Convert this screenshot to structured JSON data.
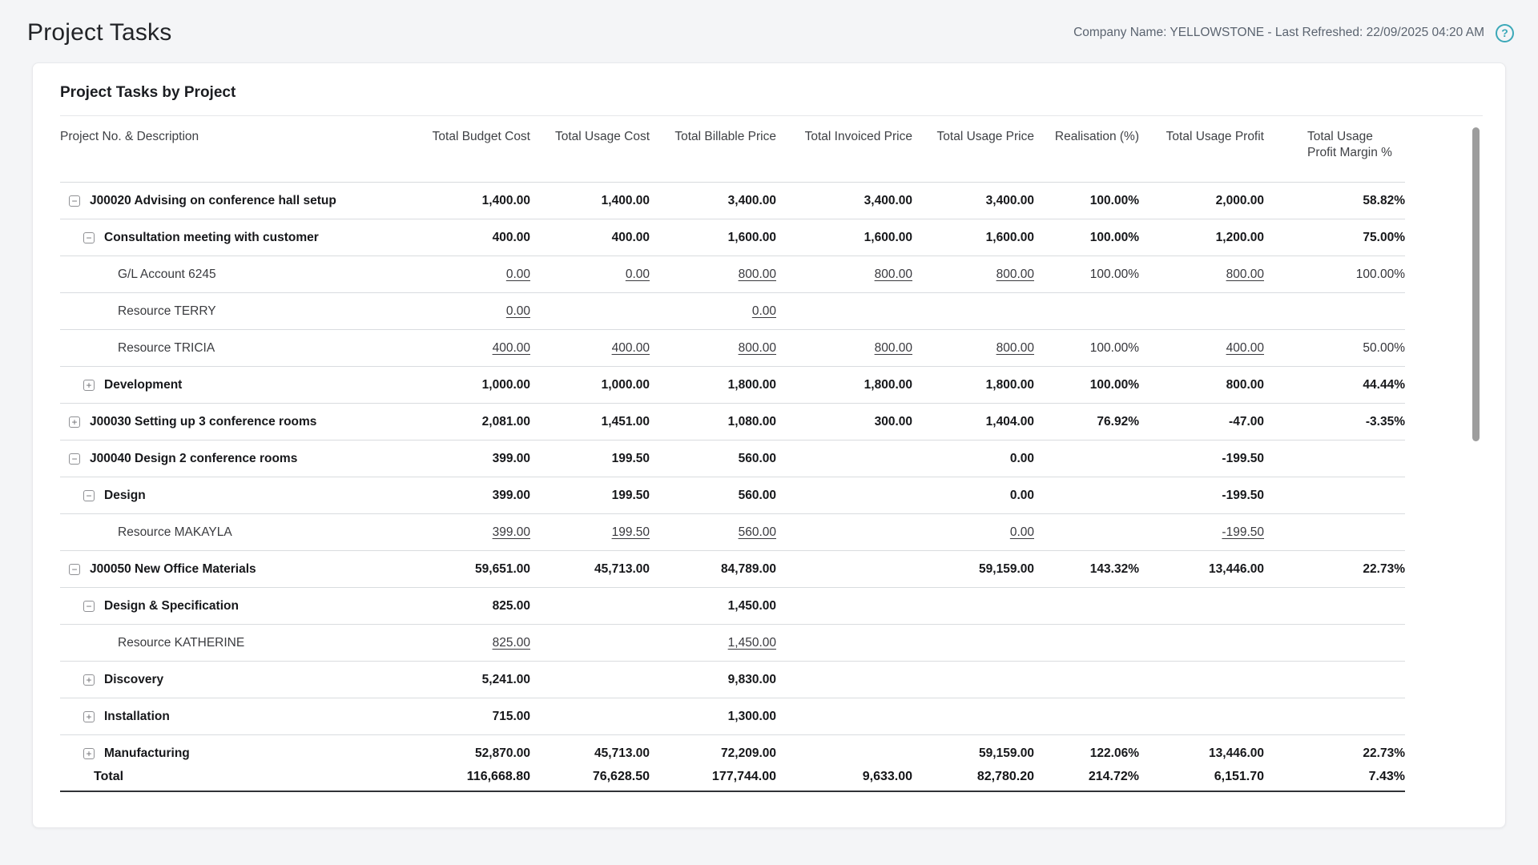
{
  "page": {
    "title": "Project Tasks",
    "meta": "Company Name: YELLOWSTONE - Last Refreshed: 22/09/2025 04:20 AM",
    "help_icon": "question-mark-icon",
    "help_glyph": "?"
  },
  "colors": {
    "accent_teal": "#3BA8B8",
    "page_background": "#f4f5f7",
    "card_background": "#ffffff",
    "divider": "#d9dcdf",
    "total_border": "#313236"
  },
  "report": {
    "title": "Project Tasks by Project",
    "columns": [
      "Project No. & Description",
      "Total Budget Cost",
      "Total Usage Cost",
      "Total Billable Price",
      "Total Invoiced Price",
      "Total Usage Price",
      "Realisation (%)",
      "Total Usage Profit",
      "Total Usage Profit Margin %"
    ],
    "rows": [
      {
        "level": 0,
        "toggle": "collapse",
        "bold": true,
        "label": "J00020 Advising on conference hall setup",
        "cells": [
          "1,400.00",
          "1,400.00",
          "3,400.00",
          "3,400.00",
          "3,400.00",
          "100.00%",
          "2,000.00",
          "58.82%"
        ]
      },
      {
        "level": 1,
        "toggle": "collapse",
        "bold": true,
        "label": "Consultation meeting with customer",
        "cells": [
          "400.00",
          "400.00",
          "1,600.00",
          "1,600.00",
          "1,600.00",
          "100.00%",
          "1,200.00",
          "75.00%"
        ]
      },
      {
        "level": 2,
        "toggle": null,
        "bold": false,
        "label": "G/L Account 6245",
        "cells": [
          {
            "v": "0.00",
            "link": true
          },
          {
            "v": "0.00",
            "link": true
          },
          {
            "v": "800.00",
            "link": true
          },
          {
            "v": "800.00",
            "link": true
          },
          {
            "v": "800.00",
            "link": true
          },
          "100.00%",
          {
            "v": "800.00",
            "link": true
          },
          "100.00%"
        ]
      },
      {
        "level": 2,
        "toggle": null,
        "bold": false,
        "label": "Resource TERRY",
        "cells": [
          {
            "v": "0.00",
            "link": true
          },
          "",
          {
            "v": "0.00",
            "link": true
          },
          "",
          "",
          "",
          "",
          ""
        ]
      },
      {
        "level": 2,
        "toggle": null,
        "bold": false,
        "label": "Resource TRICIA",
        "cells": [
          {
            "v": "400.00",
            "link": true
          },
          {
            "v": "400.00",
            "link": true
          },
          {
            "v": "800.00",
            "link": true
          },
          {
            "v": "800.00",
            "link": true
          },
          {
            "v": "800.00",
            "link": true
          },
          "100.00%",
          {
            "v": "400.00",
            "link": true
          },
          "50.00%"
        ]
      },
      {
        "level": 1,
        "toggle": "expand",
        "bold": true,
        "label": "Development",
        "cells": [
          "1,000.00",
          "1,000.00",
          "1,800.00",
          "1,800.00",
          "1,800.00",
          "100.00%",
          "800.00",
          "44.44%"
        ]
      },
      {
        "level": 0,
        "toggle": "expand",
        "bold": true,
        "label": "J00030 Setting up 3 conference rooms",
        "cells": [
          "2,081.00",
          "1,451.00",
          "1,080.00",
          "300.00",
          "1,404.00",
          "76.92%",
          "-47.00",
          "-3.35%"
        ]
      },
      {
        "level": 0,
        "toggle": "collapse",
        "bold": true,
        "label": "J00040 Design 2 conference rooms",
        "cells": [
          "399.00",
          "199.50",
          "560.00",
          "",
          "0.00",
          "",
          "-199.50",
          ""
        ]
      },
      {
        "level": 1,
        "toggle": "collapse",
        "bold": true,
        "label": "Design",
        "cells": [
          "399.00",
          "199.50",
          "560.00",
          "",
          "0.00",
          "",
          "-199.50",
          ""
        ]
      },
      {
        "level": 2,
        "toggle": null,
        "bold": false,
        "label": "Resource MAKAYLA",
        "cells": [
          {
            "v": "399.00",
            "link": true
          },
          {
            "v": "199.50",
            "link": true
          },
          {
            "v": "560.00",
            "link": true
          },
          "",
          {
            "v": "0.00",
            "link": true
          },
          "",
          {
            "v": "-199.50",
            "link": true
          },
          ""
        ]
      },
      {
        "level": 0,
        "toggle": "collapse",
        "bold": true,
        "label": "J00050 New Office Materials",
        "cells": [
          "59,651.00",
          "45,713.00",
          "84,789.00",
          "",
          "59,159.00",
          "143.32%",
          "13,446.00",
          "22.73%"
        ]
      },
      {
        "level": 1,
        "toggle": "collapse",
        "bold": true,
        "label": "Design & Specification",
        "cells": [
          "825.00",
          "",
          "1,450.00",
          "",
          "",
          "",
          "",
          ""
        ]
      },
      {
        "level": 2,
        "toggle": null,
        "bold": false,
        "label": "Resource KATHERINE",
        "cells": [
          {
            "v": "825.00",
            "link": true
          },
          "",
          {
            "v": "1,450.00",
            "link": true
          },
          "",
          "",
          "",
          "",
          ""
        ]
      },
      {
        "level": 1,
        "toggle": "expand",
        "bold": true,
        "label": "Discovery",
        "cells": [
          "5,241.00",
          "",
          "9,830.00",
          "",
          "",
          "",
          "",
          ""
        ]
      },
      {
        "level": 1,
        "toggle": "expand",
        "bold": true,
        "label": "Installation",
        "cells": [
          "715.00",
          "",
          "1,300.00",
          "",
          "",
          "",
          "",
          ""
        ]
      },
      {
        "level": 1,
        "toggle": "expand",
        "bold": true,
        "label": "Manufacturing",
        "cells": [
          "52,870.00",
          "45,713.00",
          "72,209.00",
          "",
          "59,159.00",
          "122.06%",
          "13,446.00",
          "22.73%"
        ]
      }
    ],
    "total": {
      "label": "Total",
      "cells": [
        "116,668.80",
        "76,628.50",
        "177,744.00",
        "9,633.00",
        "82,780.20",
        "214.72%",
        "6,151.70",
        "7.43%"
      ]
    }
  }
}
